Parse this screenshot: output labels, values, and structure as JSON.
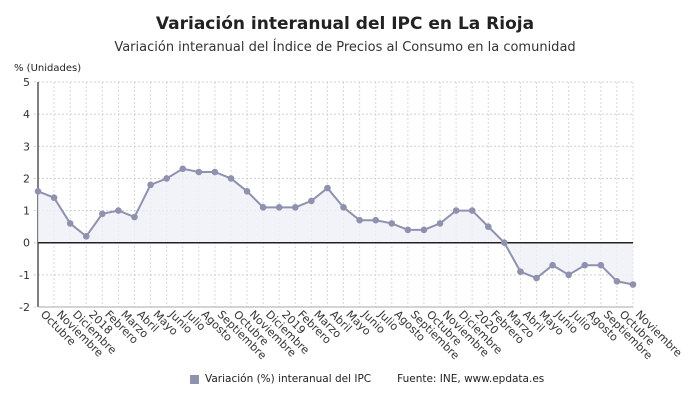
{
  "chart_data": {
    "type": "area",
    "title": "Variación interanual del IPC en La Rioja",
    "subtitle": "Variación interanual del Índice de Precios al Consumo en la comunidad",
    "ylabel": "% (Unidades)",
    "xlabel": "",
    "ylim": [
      -2,
      5
    ],
    "yticks": [
      -2,
      -1,
      0,
      1,
      2,
      3,
      4,
      5
    ],
    "grid": true,
    "legend_position": "bottom",
    "categories": [
      "Octubre",
      "Noviembre",
      "Diciembre",
      "2018",
      "Febrero",
      "Marzo",
      "Abril",
      "Mayo",
      "Junio",
      "Julio",
      "Agosto",
      "Septiembre",
      "Octubre",
      "Noviembre",
      "Diciembre",
      "2019",
      "Febrero",
      "Marzo",
      "Abril",
      "Mayo",
      "Junio",
      "Julio",
      "Agosto",
      "Septiembre",
      "Octubre",
      "Noviembre",
      "Diciembre",
      "2020",
      "Febrero",
      "Marzo",
      "Abril",
      "Mayo",
      "Junio",
      "Julio",
      "Agosto",
      "Septiembre",
      "Octubre",
      "Noviembre"
    ],
    "series": [
      {
        "name": "Variación (%) interanual del IPC",
        "color": "#8f92ae",
        "values": [
          1.6,
          1.4,
          0.6,
          0.2,
          0.9,
          1.0,
          0.8,
          1.8,
          2.0,
          2.3,
          2.2,
          2.2,
          2.0,
          1.6,
          1.1,
          1.1,
          1.1,
          1.3,
          1.7,
          1.1,
          0.7,
          0.7,
          0.6,
          0.4,
          0.4,
          0.6,
          1.0,
          1.0,
          0.5,
          0.0,
          -0.9,
          -1.1,
          -0.7,
          -1.0,
          -0.7,
          -0.7,
          -1.2,
          -1.3
        ]
      }
    ]
  },
  "source": "Fuente: INE, www.epdata.es"
}
